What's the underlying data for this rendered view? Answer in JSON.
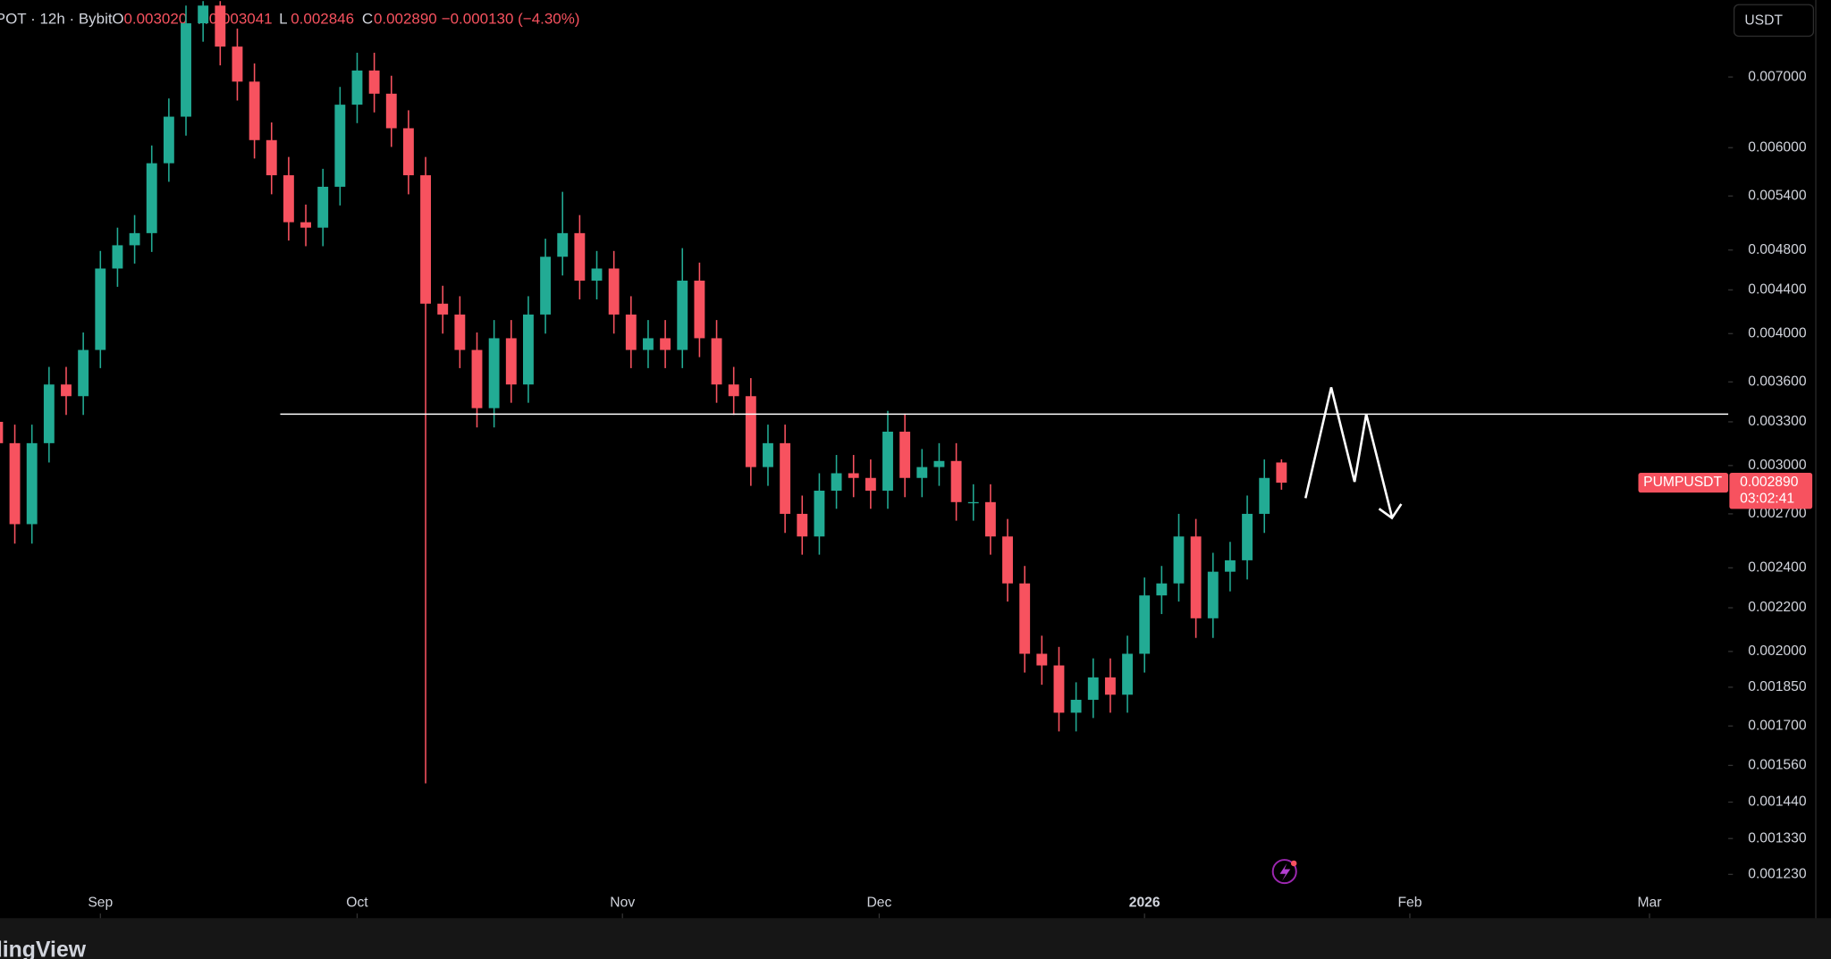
{
  "chart_data": {
    "type": "candlestick",
    "header": {
      "symbol": "POT · 12h · Bybit",
      "open_key": "O",
      "open": "0.003020",
      "high_key": "H",
      "high": "0.003041",
      "low_key": "L",
      "low": "0.002846",
      "close_key": "C",
      "close": "0.002890",
      "change": "−0.000130 (−4.30%)"
    },
    "currency": "USDT",
    "symbol_tag": "PUMPUSDT",
    "last_price_label": "0.002890",
    "countdown": "03:02:41",
    "watermark": "TradingView",
    "log_scale": true,
    "grid": false,
    "up_color": "#22ab94",
    "down_color": "#f7525f",
    "x": [
      -12,
      -10,
      -8,
      -6,
      -4,
      -2,
      0,
      2,
      4,
      6,
      8,
      10,
      12,
      14,
      16,
      18,
      20,
      22,
      24,
      26,
      28,
      30,
      32,
      34,
      36,
      38,
      40,
      42,
      44,
      46,
      48,
      50,
      52,
      54,
      56,
      58,
      60,
      62,
      64,
      66,
      68,
      70,
      72,
      74,
      76,
      78,
      80,
      82,
      84,
      86,
      88,
      90,
      92,
      94,
      96,
      98,
      100,
      102,
      104,
      106,
      108,
      110,
      112,
      114,
      116,
      118,
      120,
      122,
      124,
      126,
      128,
      130,
      132,
      134,
      136,
      138
    ],
    "open": [
      0.0033,
      0.00315,
      0.00264,
      0.00315,
      0.00358,
      0.00349,
      0.00386,
      0.00461,
      0.00485,
      0.00498,
      0.0058,
      0.00642,
      0.00787,
      0.00818,
      0.00748,
      0.00693,
      0.0061,
      0.00565,
      0.0051,
      0.00504,
      0.00551,
      0.00659,
      0.0071,
      0.00675,
      0.00626,
      0.00565,
      0.00427,
      0.00417,
      0.00386,
      0.0034,
      0.00396,
      0.00358,
      0.00417,
      0.00473,
      0.00498,
      0.00449,
      0.00461,
      0.00417,
      0.00386,
      0.00396,
      0.00386,
      0.00449,
      0.00396,
      0.00358,
      0.00349,
      0.00299,
      0.00315,
      0.0027,
      0.00257,
      0.00284,
      0.00295,
      0.00292,
      0.00284,
      0.00323,
      0.00292,
      0.00299,
      0.00303,
      0.00277,
      0.00277,
      0.00257,
      0.00232,
      0.00199,
      0.00194,
      0.00175,
      0.0018,
      0.00189,
      0.00182,
      0.00199,
      0.00226,
      0.00232,
      0.00257,
      0.00215,
      0.00238,
      0.00244,
      0.0027,
      0.00302
    ],
    "high": [
      0.00343,
      0.00328,
      0.00328,
      0.00372,
      0.00372,
      0.00401,
      0.00479,
      0.00504,
      0.00518,
      0.00603,
      0.00668,
      0.00818,
      0.00826,
      0.00826,
      0.00778,
      0.00721,
      0.00634,
      0.00588,
      0.0053,
      0.00573,
      0.00685,
      0.00738,
      0.00738,
      0.00702,
      0.00651,
      0.00588,
      0.00444,
      0.00434,
      0.00401,
      0.00412,
      0.00412,
      0.00434,
      0.00492,
      0.00545,
      0.00518,
      0.00479,
      0.00479,
      0.00434,
      0.00412,
      0.00412,
      0.00482,
      0.00467,
      0.00412,
      0.00372,
      0.00363,
      0.00328,
      0.00328,
      0.00281,
      0.00295,
      0.00307,
      0.00307,
      0.00304,
      0.00338,
      0.00336,
      0.00311,
      0.00315,
      0.00315,
      0.00288,
      0.00288,
      0.00267,
      0.00241,
      0.00207,
      0.00202,
      0.00187,
      0.00197,
      0.00197,
      0.00207,
      0.00235,
      0.00241,
      0.0027,
      0.00267,
      0.00248,
      0.00254,
      0.00281,
      0.00304,
      0.003041
    ],
    "low": [
      0.00302,
      0.00253,
      0.00253,
      0.00302,
      0.00335,
      0.00335,
      0.00371,
      0.00443,
      0.00466,
      0.00478,
      0.00557,
      0.00616,
      0.00756,
      0.00718,
      0.00665,
      0.00586,
      0.00542,
      0.0049,
      0.00484,
      0.00484,
      0.00529,
      0.00633,
      0.00648,
      0.00601,
      0.00542,
      0.0015,
      0.004,
      0.00371,
      0.00326,
      0.00326,
      0.00344,
      0.00344,
      0.004,
      0.00454,
      0.00431,
      0.00431,
      0.004,
      0.00371,
      0.00371,
      0.00371,
      0.00371,
      0.0038,
      0.00344,
      0.00335,
      0.00287,
      0.00287,
      0.00259,
      0.00247,
      0.00247,
      0.00273,
      0.0028,
      0.00273,
      0.00273,
      0.0028,
      0.0028,
      0.00287,
      0.00266,
      0.00266,
      0.00247,
      0.00223,
      0.00191,
      0.00186,
      0.00168,
      0.00168,
      0.00173,
      0.00175,
      0.00175,
      0.00191,
      0.00217,
      0.00223,
      0.00206,
      0.00206,
      0.00228,
      0.00234,
      0.00259,
      0.002846
    ],
    "close": [
      0.00315,
      0.00264,
      0.00315,
      0.00358,
      0.00349,
      0.00386,
      0.00461,
      0.00485,
      0.00498,
      0.0058,
      0.00642,
      0.00787,
      0.00818,
      0.00748,
      0.00693,
      0.0061,
      0.00565,
      0.0051,
      0.00504,
      0.00551,
      0.00659,
      0.0071,
      0.00675,
      0.00626,
      0.00565,
      0.00427,
      0.00417,
      0.00386,
      0.0034,
      0.00396,
      0.00358,
      0.00417,
      0.00473,
      0.00498,
      0.00449,
      0.00461,
      0.00417,
      0.00386,
      0.00396,
      0.00386,
      0.00449,
      0.00396,
      0.00358,
      0.00349,
      0.00299,
      0.00315,
      0.0027,
      0.00257,
      0.00284,
      0.00295,
      0.00292,
      0.00284,
      0.00323,
      0.00292,
      0.00299,
      0.00303,
      0.00277,
      0.00277,
      0.00257,
      0.00232,
      0.00199,
      0.00194,
      0.00175,
      0.0018,
      0.00189,
      0.00182,
      0.00199,
      0.00226,
      0.00232,
      0.00257,
      0.00215,
      0.00238,
      0.00244,
      0.0027,
      0.00292,
      0.00289
    ],
    "xlim": [
      -11.73,
      190.2
    ],
    "xticks": [
      {
        "value": 0,
        "label": "Sep"
      },
      {
        "value": 30,
        "label": "Oct"
      },
      {
        "value": 61,
        "label": "Nov"
      },
      {
        "value": 91,
        "label": "Dec"
      },
      {
        "value": 122,
        "label": "2026"
      },
      {
        "value": 153,
        "label": "Feb"
      },
      {
        "value": 181,
        "label": "Mar"
      }
    ],
    "ylim": [
      0.001118,
      0.00828
    ],
    "yticks": [
      {
        "value": 0.007,
        "label": "0.007000"
      },
      {
        "value": 0.006,
        "label": "0.006000"
      },
      {
        "value": 0.0054,
        "label": "0.005400"
      },
      {
        "value": 0.0048,
        "label": "0.004800"
      },
      {
        "value": 0.0044,
        "label": "0.004400"
      },
      {
        "value": 0.004,
        "label": "0.004000"
      },
      {
        "value": 0.0036,
        "label": "0.003600"
      },
      {
        "value": 0.0033,
        "label": "0.003300"
      },
      {
        "value": 0.003,
        "label": "0.003000"
      },
      {
        "value": 0.0027,
        "label": "0.002700"
      },
      {
        "value": 0.0024,
        "label": "0.002400"
      },
      {
        "value": 0.0022,
        "label": "0.002200"
      },
      {
        "value": 0.002,
        "label": "0.002000"
      },
      {
        "value": 0.00185,
        "label": "0.001850"
      },
      {
        "value": 0.0017,
        "label": "0.001700"
      },
      {
        "value": 0.00156,
        "label": "0.001560"
      },
      {
        "value": 0.00144,
        "label": "0.001440"
      },
      {
        "value": 0.00133,
        "label": "0.001330"
      },
      {
        "value": 0.00123,
        "label": "0.001230"
      }
    ]
  }
}
